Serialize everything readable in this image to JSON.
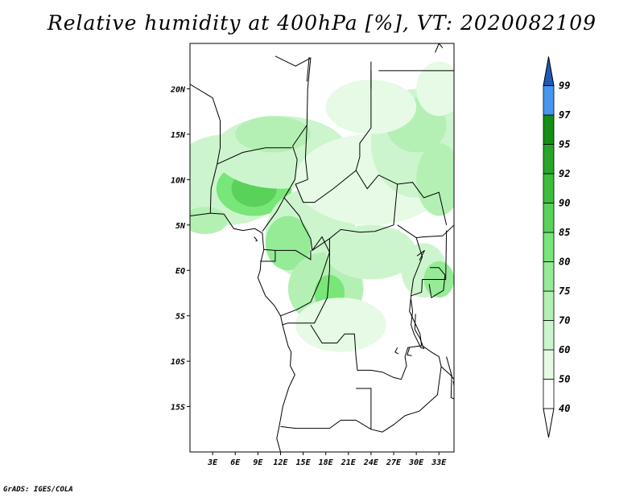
{
  "title": "Relative humidity at 400hPa [%], VT: 2020082109",
  "credit": "GrADS: IGES/COLA",
  "map": {
    "lon_range": [
      0,
      35
    ],
    "lat_range": [
      -20,
      25
    ],
    "x_ticks": [
      {
        "lon": 3,
        "label": "3E"
      },
      {
        "lon": 6,
        "label": "6E"
      },
      {
        "lon": 9,
        "label": "9E"
      },
      {
        "lon": 12,
        "label": "12E"
      },
      {
        "lon": 15,
        "label": "15E"
      },
      {
        "lon": 18,
        "label": "18E"
      },
      {
        "lon": 21,
        "label": "21E"
      },
      {
        "lon": 24,
        "label": "24E"
      },
      {
        "lon": 27,
        "label": "27E"
      },
      {
        "lon": 30,
        "label": "30E"
      },
      {
        "lon": 33,
        "label": "33E"
      }
    ],
    "y_ticks": [
      {
        "lat": 20,
        "label": "20N"
      },
      {
        "lat": 15,
        "label": "15N"
      },
      {
        "lat": 10,
        "label": "10N"
      },
      {
        "lat": 5,
        "label": "5N"
      },
      {
        "lat": 0,
        "label": "EQ"
      },
      {
        "lat": -5,
        "label": "5S"
      },
      {
        "lat": -10,
        "label": "10S"
      },
      {
        "lat": -15,
        "label": "15S"
      }
    ]
  },
  "colorbar": {
    "levels": [
      {
        "label": "40",
        "color": "#ffffff"
      },
      {
        "label": "50",
        "color": "#e6fae6"
      },
      {
        "label": "60",
        "color": "#cdf5cd"
      },
      {
        "label": "70",
        "color": "#b4f0b4"
      },
      {
        "label": "75",
        "color": "#96eb96"
      },
      {
        "label": "80",
        "color": "#78e678"
      },
      {
        "label": "85",
        "color": "#5ad25a"
      },
      {
        "label": "90",
        "color": "#3cbe3c"
      },
      {
        "label": "92",
        "color": "#28a628"
      },
      {
        "label": "95",
        "color": "#148f14"
      },
      {
        "label": "97",
        "color": "#4696f0"
      },
      {
        "label": "99",
        "color": "#2878dc"
      }
    ],
    "top_color": "#1e5ab4"
  },
  "humidity_patches": [
    {
      "lon": 5,
      "lat": 10,
      "rx": 8,
      "ry": 5,
      "level": 2
    },
    {
      "lon": 8.5,
      "lat": 9,
      "rx": 5,
      "ry": 3,
      "level": 5
    },
    {
      "lon": 8.5,
      "lat": 9,
      "rx": 3,
      "ry": 2,
      "level": 6
    },
    {
      "lon": 12,
      "lat": 13,
      "rx": 9,
      "ry": 4,
      "level": 2
    },
    {
      "lon": 11,
      "lat": 15,
      "rx": 5,
      "ry": 2,
      "level": 3
    },
    {
      "lon": 16,
      "lat": 4,
      "rx": 6,
      "ry": 5,
      "level": 2
    },
    {
      "lon": 13,
      "lat": 3,
      "rx": 3,
      "ry": 3,
      "level": 4
    },
    {
      "lon": 18,
      "lat": -2,
      "rx": 5,
      "ry": 4,
      "level": 3
    },
    {
      "lon": 18.5,
      "lat": -2.5,
      "rx": 2,
      "ry": 2,
      "level": 5
    },
    {
      "lon": 20,
      "lat": -6,
      "rx": 6,
      "ry": 3,
      "level": 1
    },
    {
      "lon": 24,
      "lat": 2,
      "rx": 6,
      "ry": 3,
      "level": 2
    },
    {
      "lon": 24,
      "lat": 10,
      "rx": 10,
      "ry": 5,
      "level": 1
    },
    {
      "lon": 30,
      "lat": 14,
      "rx": 6,
      "ry": 6,
      "level": 2
    },
    {
      "lon": 30,
      "lat": 16,
      "rx": 4,
      "ry": 3,
      "level": 3
    },
    {
      "lon": 33,
      "lat": 10,
      "rx": 3,
      "ry": 4,
      "level": 3
    },
    {
      "lon": 31,
      "lat": 0,
      "rx": 3,
      "ry": 3,
      "level": 2
    },
    {
      "lon": 33,
      "lat": -1,
      "rx": 2,
      "ry": 2,
      "level": 4
    },
    {
      "lon": 2,
      "lat": 5.5,
      "rx": 3,
      "ry": 1.5,
      "level": 3
    },
    {
      "lon": 24,
      "lat": 18,
      "rx": 6,
      "ry": 3,
      "level": 1
    },
    {
      "lon": 33,
      "lat": 20,
      "rx": 3,
      "ry": 3,
      "level": 1
    }
  ],
  "country_borders": [
    [
      [
        0,
        20.5
      ],
      [
        3,
        19
      ],
      [
        4,
        16.5
      ],
      [
        4,
        13.5
      ],
      [
        3.6,
        11.7
      ],
      [
        2.8,
        9
      ],
      [
        2.7,
        6.3
      ]
    ],
    [
      [
        3.6,
        11.7
      ],
      [
        7,
        13
      ],
      [
        10,
        13.5
      ],
      [
        13.5,
        13.5
      ]
    ],
    [
      [
        13.6,
        13.7
      ],
      [
        14.2,
        12.2
      ],
      [
        13.9,
        10
      ],
      [
        12.5,
        8
      ],
      [
        11.5,
        6.5
      ],
      [
        9.6,
        4.3
      ]
    ],
    [
      [
        11.3,
        23.6
      ],
      [
        14,
        22.5
      ],
      [
        16,
        23.4
      ],
      [
        15.6,
        20
      ],
      [
        15.5,
        16
      ],
      [
        13.6,
        13.7
      ]
    ],
    [
      [
        15.5,
        16
      ],
      [
        15.3,
        12.3
      ],
      [
        15.6,
        10
      ],
      [
        14,
        9.5
      ],
      [
        15,
        7.5
      ],
      [
        16.5,
        7.5
      ],
      [
        19,
        9
      ],
      [
        22,
        11
      ],
      [
        23.5,
        9
      ],
      [
        25,
        10.5
      ],
      [
        27.5,
        9.5
      ],
      [
        27,
        5
      ],
      [
        24.5,
        4.3
      ],
      [
        22.5,
        4.2
      ],
      [
        20,
        4.5
      ],
      [
        18.5,
        3.5
      ],
      [
        16.2,
        2.2
      ],
      [
        16,
        3.5
      ],
      [
        15,
        5
      ],
      [
        14.5,
        6
      ],
      [
        12.5,
        8
      ]
    ],
    [
      [
        16,
        2.2
      ],
      [
        16,
        1.2
      ],
      [
        14,
        2.2
      ],
      [
        11.3,
        2.2
      ],
      [
        9.8,
        2.3
      ]
    ],
    [
      [
        11.3,
        2.2
      ],
      [
        11.3,
        1
      ],
      [
        9.3,
        1
      ]
    ],
    [
      [
        16.2,
        2.2
      ],
      [
        17.5,
        3.7
      ],
      [
        18.5,
        2
      ],
      [
        17.3,
        -1
      ],
      [
        16,
        -3.5
      ],
      [
        14.2,
        -4.3
      ],
      [
        12,
        -5
      ]
    ],
    [
      [
        18.5,
        3.5
      ],
      [
        18.5,
        0
      ],
      [
        18.2,
        -3
      ],
      [
        16.5,
        -5.8
      ],
      [
        13,
        -5.8
      ],
      [
        12.2,
        -6
      ]
    ],
    [
      [
        24,
        22
      ],
      [
        24,
        20
      ],
      [
        24,
        15.7
      ],
      [
        22.5,
        14
      ],
      [
        22.5,
        12.5
      ],
      [
        22,
        11
      ]
    ],
    [
      [
        25,
        22
      ],
      [
        36,
        22
      ]
    ],
    [
      [
        27.5,
        9.5
      ],
      [
        29.5,
        9.7
      ],
      [
        31,
        8
      ],
      [
        33,
        8.6
      ],
      [
        34,
        5
      ]
    ],
    [
      [
        27.5,
        5
      ],
      [
        30,
        3.6
      ],
      [
        31,
        3.7
      ],
      [
        33.5,
        3.8
      ],
      [
        35,
        5
      ]
    ],
    [
      [
        30,
        3.6
      ],
      [
        30.8,
        1.5
      ],
      [
        29.6,
        -1
      ],
      [
        29.3,
        -2.8
      ],
      [
        29.1,
        -4.5
      ],
      [
        30.5,
        -7
      ],
      [
        30.7,
        -8.3
      ],
      [
        28.9,
        -8.5
      ],
      [
        28.5,
        -9.5
      ],
      [
        28.7,
        -10.5
      ],
      [
        28,
        -12
      ],
      [
        27,
        -11.8
      ],
      [
        25.5,
        -11.2
      ],
      [
        24,
        -11
      ],
      [
        22.2,
        -11
      ],
      [
        22,
        -9.5
      ],
      [
        21.8,
        -7
      ],
      [
        20.5,
        -7
      ],
      [
        19.5,
        -8
      ],
      [
        17.5,
        -8
      ],
      [
        16,
        -6
      ]
    ],
    [
      [
        22,
        -13
      ],
      [
        24,
        -13
      ],
      [
        24,
        -17.5
      ]
    ],
    [
      [
        24,
        -17.5
      ],
      [
        22,
        -16.5
      ],
      [
        20,
        -16.5
      ],
      [
        18.5,
        -17.4
      ],
      [
        14,
        -17.4
      ],
      [
        12,
        -17.2
      ]
    ],
    [
      [
        24,
        -17.5
      ],
      [
        25.5,
        -17.8
      ],
      [
        27,
        -17
      ],
      [
        28.5,
        -16
      ],
      [
        30.4,
        -15.5
      ],
      [
        32.8,
        -13.7
      ],
      [
        33.3,
        -10.6
      ],
      [
        33,
        -9.5
      ],
      [
        32,
        -9
      ],
      [
        30.8,
        -8.3
      ]
    ],
    [
      [
        33.3,
        -10.6
      ],
      [
        34.5,
        -11.5
      ],
      [
        35,
        -12
      ],
      [
        36,
        -14
      ]
    ],
    [
      [
        29.3,
        -2.8
      ],
      [
        30.7,
        -2.4
      ],
      [
        30.8,
        -1
      ],
      [
        33.9,
        -1
      ],
      [
        34,
        4.4
      ]
    ],
    [
      [
        15.5,
        20.8
      ],
      [
        15.8,
        23.5
      ]
    ],
    [
      [
        24,
        20
      ],
      [
        24,
        23
      ]
    ]
  ],
  "coastlines": [
    [
      [
        0,
        6
      ],
      [
        2.7,
        6.3
      ],
      [
        4.5,
        6.2
      ],
      [
        5.8,
        4.6
      ],
      [
        7,
        4.4
      ],
      [
        8.6,
        4.6
      ],
      [
        9.6,
        4.1
      ],
      [
        9.7,
        3
      ],
      [
        9.8,
        2.3
      ],
      [
        9.4,
        1
      ],
      [
        9.3,
        0
      ],
      [
        9,
        -0.8
      ],
      [
        10,
        -2.8
      ],
      [
        11.2,
        -3.9
      ],
      [
        12,
        -5
      ],
      [
        12.3,
        -6.1
      ],
      [
        13,
        -8.3
      ],
      [
        13.4,
        -9
      ],
      [
        13.3,
        -10.5
      ],
      [
        13.9,
        -11.5
      ],
      [
        13.1,
        -12.9
      ],
      [
        12.3,
        -15
      ],
      [
        11.8,
        -17.3
      ],
      [
        11.5,
        -18.5
      ],
      [
        12,
        -20
      ]
    ],
    [
      [
        8.5,
        3.7
      ],
      [
        8.9,
        3.3
      ],
      [
        8.7,
        3.2
      ]
    ],
    [
      [
        29.3,
        -3.2
      ],
      [
        29.5,
        -4.5
      ],
      [
        29.3,
        -6
      ],
      [
        29.7,
        -7
      ],
      [
        30.6,
        -8.5
      ],
      [
        31,
        -8.6
      ],
      [
        30.5,
        -7.5
      ],
      [
        29.8,
        -6.5
      ],
      [
        29.9,
        -4.8
      ]
    ],
    [
      [
        31.8,
        0.3
      ],
      [
        33,
        0.3
      ],
      [
        33.8,
        -0.5
      ],
      [
        33.6,
        -2.2
      ],
      [
        32,
        -3
      ],
      [
        31.7,
        -1.5
      ]
    ],
    [
      [
        30.1,
        1.6
      ],
      [
        31.1,
        2.2
      ],
      [
        30.4,
        1.1
      ]
    ],
    [
      [
        34,
        -9.5
      ],
      [
        34.7,
        -11.6
      ],
      [
        34.6,
        -14
      ],
      [
        35.3,
        -14.3
      ],
      [
        34.9,
        -12.2
      ]
    ],
    [
      [
        29.1,
        -8.5
      ],
      [
        28.8,
        -9.3
      ],
      [
        29.4,
        -9.4
      ]
    ],
    [
      [
        27.5,
        -8.5
      ],
      [
        27.2,
        -9
      ],
      [
        27.6,
        -9.2
      ]
    ],
    [
      [
        32.5,
        24
      ],
      [
        33,
        25
      ],
      [
        33.5,
        24.5
      ]
    ]
  ]
}
